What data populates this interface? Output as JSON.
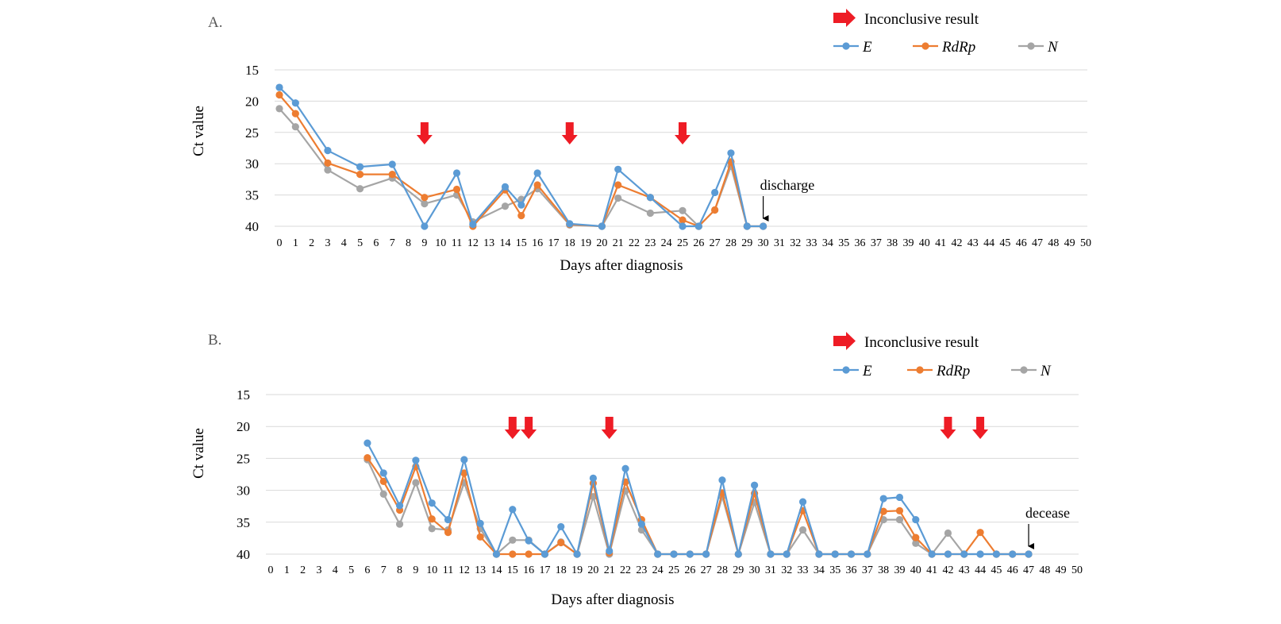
{
  "chart_data": [
    {
      "type": "line",
      "panel_label": "A.",
      "xlabel": "Days after diagnosis",
      "ylabel": "Ct value",
      "ylim": [
        15,
        40
      ],
      "y_inverted": true,
      "yticks": [
        15,
        20,
        25,
        30,
        35,
        40
      ],
      "xlim": [
        0,
        50
      ],
      "grid": "horizontal",
      "legend": {
        "position": "top-right",
        "marker_label": "Inconclusive result",
        "series_labels": [
          "E",
          "RdRp",
          "N"
        ]
      },
      "colors": {
        "E": "#5b9bd5",
        "RdRp": "#ed7d31",
        "N": "#a5a5a5",
        "arrow": "#ee1c25"
      },
      "series": [
        {
          "name": "E",
          "points": [
            [
              0,
              17.8
            ],
            [
              1,
              20.3
            ],
            [
              3,
              27.9
            ],
            [
              5,
              30.5
            ],
            [
              7,
              30.1
            ],
            [
              9,
              40
            ],
            [
              11,
              31.5
            ],
            [
              12,
              39.7
            ],
            [
              14,
              33.7
            ],
            [
              15,
              36.6
            ],
            [
              16,
              31.5
            ],
            [
              18,
              39.6
            ],
            [
              20,
              40
            ],
            [
              21,
              30.9
            ],
            [
              23,
              35.4
            ],
            [
              25,
              40
            ],
            [
              26,
              40
            ],
            [
              27,
              34.6
            ],
            [
              28,
              28.3
            ],
            [
              29,
              40
            ],
            [
              30,
              40
            ]
          ]
        },
        {
          "name": "RdRp",
          "points": [
            [
              0,
              19.0
            ],
            [
              1,
              22.0
            ],
            [
              3,
              29.9
            ],
            [
              5,
              31.7
            ],
            [
              7,
              31.7
            ],
            [
              9,
              35.4
            ],
            [
              11,
              34.1
            ],
            [
              12,
              40
            ],
            [
              14,
              34.2
            ],
            [
              15,
              38.3
            ],
            [
              16,
              33.4
            ],
            [
              18,
              39.7
            ],
            [
              20,
              40
            ],
            [
              21,
              33.4
            ],
            [
              23,
              35.4
            ],
            [
              25,
              39.0
            ],
            [
              26,
              40
            ],
            [
              27,
              37.4
            ],
            [
              28,
              29.7
            ],
            [
              29,
              40
            ],
            [
              30,
              40
            ]
          ]
        },
        {
          "name": "N",
          "points": [
            [
              0,
              21.2
            ],
            [
              1,
              24.1
            ],
            [
              3,
              31.0
            ],
            [
              5,
              34.0
            ],
            [
              7,
              32.3
            ],
            [
              9,
              36.4
            ],
            [
              11,
              35.0
            ],
            [
              12,
              39.3
            ],
            [
              14,
              36.8
            ],
            [
              15,
              35.7
            ],
            [
              16,
              34.0
            ],
            [
              18,
              39.8
            ],
            [
              20,
              40
            ],
            [
              21,
              35.5
            ],
            [
              23,
              37.9
            ],
            [
              25,
              37.5
            ],
            [
              26,
              40
            ],
            [
              27,
              37.4
            ],
            [
              28,
              30.4
            ],
            [
              29,
              40
            ],
            [
              30,
              40
            ]
          ]
        }
      ],
      "inconclusive_days": [
        9,
        18,
        25
      ],
      "event": {
        "label": "discharge",
        "day": 30
      }
    },
    {
      "type": "line",
      "panel_label": "B.",
      "xlabel": "Days after diagnosis",
      "ylabel": "Ct value",
      "ylim": [
        15,
        40
      ],
      "y_inverted": true,
      "yticks": [
        15,
        20,
        25,
        30,
        35,
        40
      ],
      "xlim": [
        0,
        50
      ],
      "grid": "horizontal",
      "legend": {
        "position": "top-right",
        "marker_label": "Inconclusive result",
        "series_labels": [
          "E",
          "RdRp",
          "N"
        ]
      },
      "colors": {
        "E": "#5b9bd5",
        "RdRp": "#ed7d31",
        "N": "#a5a5a5",
        "arrow": "#ee1c25"
      },
      "series": [
        {
          "name": "E",
          "points": [
            [
              6,
              22.6
            ],
            [
              7,
              27.3
            ],
            [
              8,
              32.4
            ],
            [
              9,
              25.3
            ],
            [
              10,
              32.0
            ],
            [
              11,
              34.6
            ],
            [
              12,
              25.2
            ],
            [
              13,
              35.2
            ],
            [
              14,
              40
            ],
            [
              15,
              33.0
            ],
            [
              16,
              37.9
            ],
            [
              17,
              40
            ],
            [
              18,
              35.7
            ],
            [
              19,
              40
            ],
            [
              20,
              28.1
            ],
            [
              21,
              39.5
            ],
            [
              22,
              26.6
            ],
            [
              23,
              35.3
            ],
            [
              24,
              40
            ],
            [
              25,
              40
            ],
            [
              26,
              40
            ],
            [
              27,
              40
            ],
            [
              28,
              28.4
            ],
            [
              29,
              40
            ],
            [
              30,
              29.2
            ],
            [
              31,
              40
            ],
            [
              32,
              40
            ],
            [
              33,
              31.8
            ],
            [
              34,
              40
            ],
            [
              35,
              40
            ],
            [
              36,
              40
            ],
            [
              37,
              40
            ],
            [
              38,
              31.3
            ],
            [
              39,
              31.1
            ],
            [
              40,
              34.6
            ],
            [
              41,
              40
            ],
            [
              42,
              40
            ],
            [
              43,
              40
            ],
            [
              44,
              40
            ],
            [
              45,
              40
            ],
            [
              46,
              40
            ],
            [
              47,
              40
            ]
          ]
        },
        {
          "name": "RdRp",
          "points": [
            [
              6,
              24.9
            ],
            [
              7,
              28.6
            ],
            [
              8,
              33.1
            ],
            [
              9,
              26.3
            ],
            [
              10,
              34.5
            ],
            [
              11,
              36.6
            ],
            [
              12,
              27.3
            ],
            [
              13,
              37.3
            ],
            [
              14,
              40
            ],
            [
              15,
              40
            ],
            [
              16,
              40
            ],
            [
              17,
              40
            ],
            [
              18,
              38.2
            ],
            [
              19,
              40
            ],
            [
              20,
              28.9
            ],
            [
              21,
              39.8
            ],
            [
              22,
              28.7
            ],
            [
              23,
              34.6
            ],
            [
              24,
              40
            ],
            [
              25,
              40
            ],
            [
              26,
              40
            ],
            [
              27,
              40
            ],
            [
              28,
              30.4
            ],
            [
              29,
              40
            ],
            [
              30,
              30.5
            ],
            [
              31,
              40
            ],
            [
              32,
              40
            ],
            [
              33,
              33.2
            ],
            [
              34,
              40
            ],
            [
              35,
              40
            ],
            [
              36,
              40
            ],
            [
              37,
              40
            ],
            [
              38,
              33.3
            ],
            [
              39,
              33.2
            ],
            [
              40,
              37.4
            ],
            [
              41,
              40
            ],
            [
              42,
              40
            ],
            [
              43,
              40
            ],
            [
              44,
              36.6
            ],
            [
              45,
              40
            ],
            [
              46,
              40
            ],
            [
              47,
              40
            ]
          ]
        },
        {
          "name": "N",
          "points": [
            [
              6,
              25.2
            ],
            [
              7,
              30.6
            ],
            [
              8,
              35.3
            ],
            [
              9,
              28.8
            ],
            [
              10,
              36.0
            ],
            [
              11,
              36.2
            ],
            [
              12,
              28.8
            ],
            [
              13,
              36.0
            ],
            [
              14,
              40
            ],
            [
              15,
              37.8
            ],
            [
              16,
              37.8
            ],
            [
              17,
              40
            ],
            [
              18,
              38.1
            ],
            [
              19,
              40
            ],
            [
              20,
              31.0
            ],
            [
              21,
              40
            ],
            [
              22,
              30.1
            ],
            [
              23,
              36.2
            ],
            [
              24,
              40
            ],
            [
              25,
              40
            ],
            [
              26,
              40
            ],
            [
              27,
              40
            ],
            [
              28,
              31.0
            ],
            [
              29,
              40
            ],
            [
              30,
              31.9
            ],
            [
              31,
              40
            ],
            [
              32,
              40
            ],
            [
              33,
              36.2
            ],
            [
              34,
              40
            ],
            [
              35,
              40
            ],
            [
              36,
              40
            ],
            [
              37,
              40
            ],
            [
              38,
              34.6
            ],
            [
              39,
              34.6
            ],
            [
              40,
              38.3
            ],
            [
              41,
              40
            ],
            [
              42,
              36.7
            ],
            [
              43,
              40
            ],
            [
              44,
              40
            ],
            [
              45,
              40
            ],
            [
              46,
              40
            ],
            [
              47,
              40
            ]
          ]
        }
      ],
      "inconclusive_days": [
        15,
        16,
        21,
        42,
        44
      ],
      "event": {
        "label": "decease",
        "day": 47
      }
    }
  ]
}
